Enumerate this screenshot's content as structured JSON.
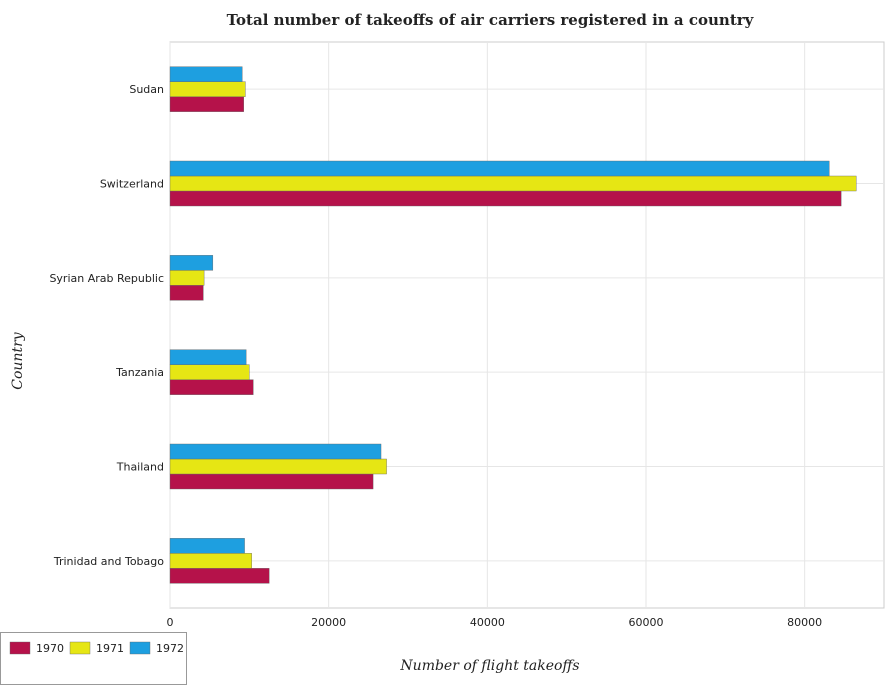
{
  "chart_data": {
    "type": "bar",
    "orientation": "horizontal",
    "title": "Total number of takeoffs of air carriers registered in a country",
    "xlabel": "Number of flight takeoffs",
    "ylabel": "Country",
    "categories": [
      "Sudan",
      "Switzerland",
      "Syrian Arab Republic",
      "Tanzania",
      "Thailand",
      "Trinidad and Tobago"
    ],
    "series": [
      {
        "name": "1970",
        "color": "#b5124a",
        "values": [
          9300,
          84600,
          4200,
          10500,
          25600,
          12500
        ]
      },
      {
        "name": "1971",
        "color": "#e6e614",
        "values": [
          9500,
          86500,
          4300,
          10000,
          27300,
          10300
        ]
      },
      {
        "name": "1972",
        "color": "#1e9fe0",
        "values": [
          9100,
          83100,
          5400,
          9600,
          26600,
          9400
        ]
      }
    ],
    "xlim": [
      0,
      90000
    ],
    "xticks": [
      0,
      20000,
      40000,
      60000,
      80000
    ],
    "grid": true,
    "legend_position": "bottom-left"
  }
}
